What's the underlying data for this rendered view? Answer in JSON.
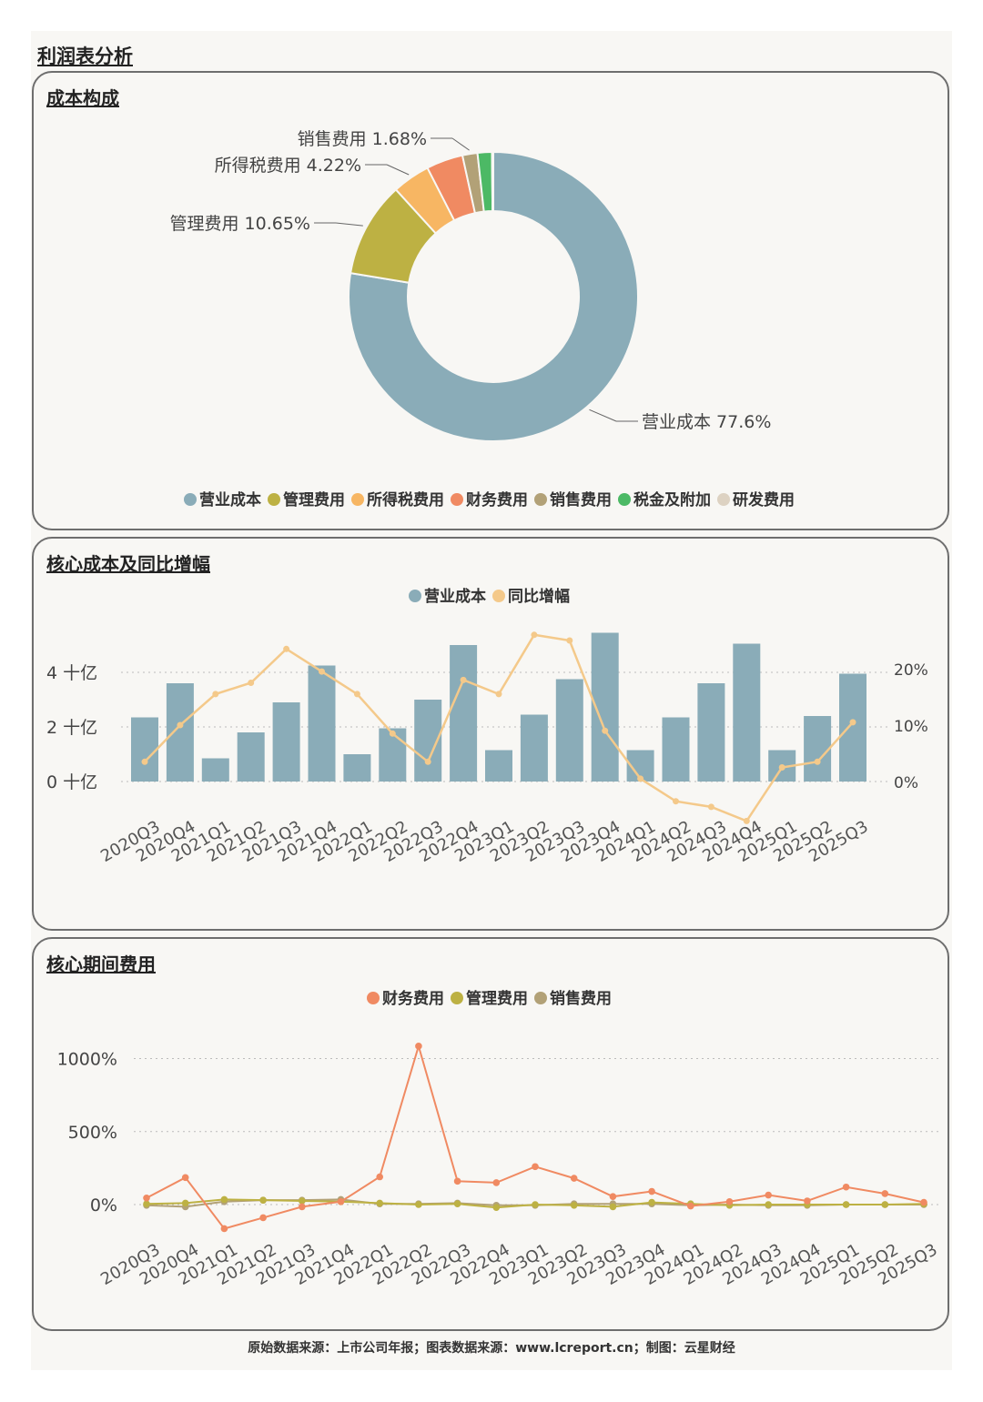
{
  "page_title": "利润表分析",
  "footer": "原始数据来源：上市公司年报；图表数据来源：www.lcreport.cn；制图：云星财经",
  "colors": {
    "营业成本": "#8aacb8",
    "管理费用": "#bdb143",
    "所得税费用": "#f7b663",
    "财务费用": "#f08a62",
    "销售费用": "#b2a177",
    "税金及附加": "#4cb965",
    "研发费用": "#ddd2c2",
    "同比增幅": "#f4c98a"
  },
  "chart_data": [
    {
      "type": "pie",
      "title": "成本构成",
      "donut": true,
      "legend_position": "bottom",
      "slices": [
        {
          "name": "营业成本",
          "value": 77.6,
          "label": "营业成本 77.6%"
        },
        {
          "name": "管理费用",
          "value": 10.65,
          "label": "管理费用 10.65%"
        },
        {
          "name": "所得税费用",
          "value": 4.22,
          "label": "所得税费用 4.22%"
        },
        {
          "name": "财务费用",
          "value": 4.1,
          "label": ""
        },
        {
          "name": "销售费用",
          "value": 1.68,
          "label": "销售费用 1.68%"
        },
        {
          "name": "税金及附加",
          "value": 1.6,
          "label": ""
        },
        {
          "name": "研发费用",
          "value": 0.15,
          "label": ""
        }
      ]
    },
    {
      "type": "bar",
      "title": "核心成本及同比增幅",
      "legend_position": "top",
      "categories": [
        "2020Q3",
        "2020Q4",
        "2021Q1",
        "2021Q2",
        "2021Q3",
        "2021Q4",
        "2022Q1",
        "2022Q2",
        "2022Q3",
        "2022Q4",
        "2023Q1",
        "2023Q2",
        "2023Q3",
        "2023Q4",
        "2024Q1",
        "2024Q2",
        "2024Q3",
        "2024Q4",
        "2025Q1",
        "2025Q2",
        "2025Q3"
      ],
      "series": [
        {
          "name": "营业成本",
          "type": "bar",
          "axis": "left",
          "values": [
            2.35,
            3.6,
            0.85,
            1.8,
            2.9,
            4.25,
            1.0,
            1.95,
            3.0,
            5.0,
            1.15,
            2.45,
            3.75,
            5.45,
            1.15,
            2.35,
            3.6,
            5.05,
            1.15,
            2.4,
            3.95
          ]
        },
        {
          "name": "同比增幅",
          "type": "line",
          "axis": "right",
          "values": [
            3.5,
            10.0,
            15.5,
            17.5,
            23.5,
            19.5,
            15.5,
            8.5,
            3.5,
            18.0,
            15.5,
            26.0,
            25.0,
            9.0,
            0.5,
            -3.5,
            -4.5,
            -7.0,
            2.5,
            3.5,
            10.5
          ]
        }
      ],
      "y_left": {
        "ticks": [
          "0 十亿",
          "2 十亿",
          "4 十亿"
        ],
        "tick_values": [
          0,
          2,
          4
        ],
        "range": [
          -2.2,
          6.2
        ]
      },
      "y_right": {
        "ticks": [
          "0%",
          "10%",
          "20%"
        ],
        "tick_values": [
          0,
          10,
          20
        ]
      },
      "grid": "dotted"
    },
    {
      "type": "line",
      "title": "核心期间费用",
      "legend_position": "top",
      "categories": [
        "2020Q3",
        "2020Q4",
        "2021Q1",
        "2021Q2",
        "2021Q3",
        "2021Q4",
        "2022Q1",
        "2022Q2",
        "2022Q3",
        "2022Q4",
        "2023Q1",
        "2023Q2",
        "2023Q3",
        "2023Q4",
        "2024Q1",
        "2024Q2",
        "2024Q3",
        "2024Q4",
        "2025Q1",
        "2025Q2",
        "2025Q3"
      ],
      "series": [
        {
          "name": "财务费用",
          "values": [
            45,
            185,
            -165,
            -90,
            -15,
            20,
            190,
            1085,
            160,
            150,
            260,
            180,
            55,
            90,
            -10,
            20,
            65,
            25,
            120,
            75,
            15
          ]
        },
        {
          "name": "管理费用",
          "values": [
            5,
            10,
            35,
            30,
            25,
            20,
            10,
            0,
            5,
            -20,
            0,
            -5,
            -15,
            15,
            5,
            -5,
            0,
            0,
            0,
            0,
            5
          ]
        },
        {
          "name": "销售费用",
          "values": [
            -5,
            -15,
            20,
            30,
            30,
            35,
            5,
            5,
            10,
            -5,
            -5,
            5,
            5,
            5,
            -5,
            0,
            -5,
            -5,
            0,
            0,
            0
          ]
        }
      ],
      "y_ticks": [
        "0%",
        "500%",
        "1000%"
      ],
      "y_tick_values": [
        0,
        500,
        1000
      ],
      "grid": "dotted"
    }
  ]
}
